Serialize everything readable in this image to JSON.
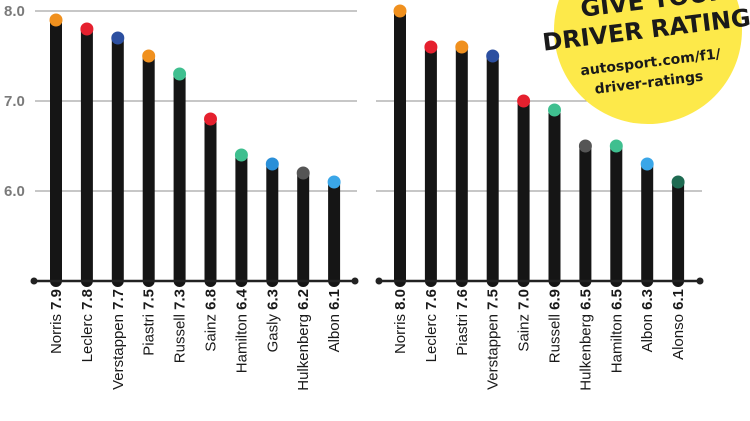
{
  "chart_data": [
    {
      "type": "bar",
      "ylim": [
        5.0,
        8.0
      ],
      "yticks": [
        "8.0",
        "7.0",
        "6.0"
      ],
      "grid": true,
      "categories": [
        "Norris",
        "Leclerc",
        "Verstappen",
        "Piastri",
        "Russell",
        "Sainz",
        "Hamilton",
        "Gasly",
        "Hulkenberg",
        "Albon"
      ],
      "values": [
        7.9,
        7.8,
        7.7,
        7.5,
        7.3,
        6.8,
        6.4,
        6.3,
        6.2,
        6.1
      ],
      "value_labels": [
        "7.9",
        "7.8",
        "7.7",
        "7.5",
        "7.3",
        "6.8",
        "6.4",
        "6.3",
        "6.2",
        "6.1"
      ],
      "cap_colors": [
        "#f0901e",
        "#e5202e",
        "#2c4fa0",
        "#f0901e",
        "#3fbf8f",
        "#e5202e",
        "#3fbf8f",
        "#2a8fd8",
        "#555555",
        "#3aa6e8"
      ]
    },
    {
      "type": "bar",
      "ylim": [
        5.0,
        8.0
      ],
      "yticks": [
        "7.0",
        "6.0"
      ],
      "grid": true,
      "categories": [
        "Norris",
        "Leclerc",
        "Piastri",
        "Verstappen",
        "Sainz",
        "Russell",
        "Hulkenberg",
        "Hamilton",
        "Albon",
        "Alonso"
      ],
      "values": [
        8.0,
        7.6,
        7.6,
        7.5,
        7.0,
        6.9,
        6.5,
        6.5,
        6.3,
        6.1
      ],
      "value_labels": [
        "8.0",
        "7.6",
        "7.6",
        "7.5",
        "7.0",
        "6.9",
        "6.5",
        "6.5",
        "6.3",
        "6.1"
      ],
      "cap_colors": [
        "#f0901e",
        "#e5202e",
        "#f0901e",
        "#2c4fa0",
        "#e5202e",
        "#3fbf8f",
        "#555555",
        "#3fbf8f",
        "#3aa6e8",
        "#1f6b52"
      ]
    }
  ],
  "promo": {
    "line1": "GIVE YOUR",
    "line2": "DRIVER RATINGS",
    "line3": "autosport.com/f1/",
    "line4": "driver-ratings",
    "bg_color": "#fde94a"
  }
}
